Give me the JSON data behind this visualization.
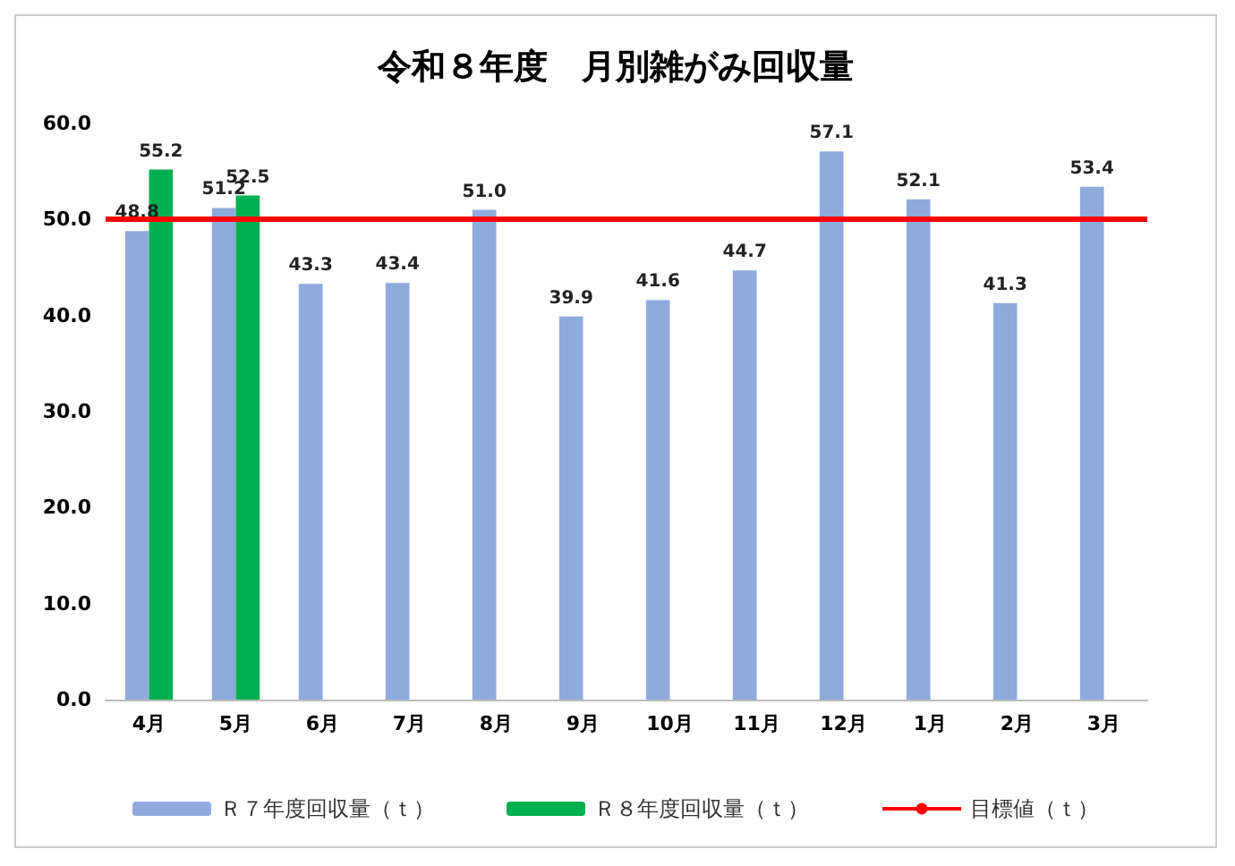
{
  "chart_data": {
    "type": "bar",
    "title": "令和８年度　月別雑がみ回収量",
    "categories": [
      "4月",
      "5月",
      "6月",
      "7月",
      "8月",
      "9月",
      "10月",
      "11月",
      "12月",
      "1月",
      "2月",
      "3月"
    ],
    "series": [
      {
        "name": "Ｒ７年度回収量（ｔ）",
        "color": "#8faadc",
        "values": [
          48.8,
          51.2,
          43.3,
          43.4,
          51.0,
          39.9,
          41.6,
          44.7,
          57.1,
          52.1,
          41.3,
          53.4
        ],
        "value_labels": [
          "48.8",
          "51.2",
          "43.3",
          "43.4",
          "51.0",
          "39.9",
          "41.6",
          "44.7",
          "57.1",
          "52.1",
          "41.3",
          "53.4"
        ]
      },
      {
        "name": "Ｒ８年度回収量（ｔ）",
        "color": "#00b050",
        "values": [
          55.2,
          52.5,
          null,
          null,
          null,
          null,
          null,
          null,
          null,
          null,
          null,
          null
        ],
        "value_labels": [
          "55.2",
          "52.5",
          null,
          null,
          null,
          null,
          null,
          null,
          null,
          null,
          null,
          null
        ]
      }
    ],
    "ref_lines": [
      {
        "axis": "y",
        "value": 50,
        "label": "目標値（ｔ）",
        "color": "#ff0000",
        "line_style": "solid"
      }
    ],
    "ylim": [
      0,
      60
    ],
    "yticks": [
      {
        "value": 0,
        "label": "0.0"
      },
      {
        "value": 10,
        "label": "10.0"
      },
      {
        "value": 20,
        "label": "20.0"
      },
      {
        "value": 30,
        "label": "30.0"
      },
      {
        "value": 40,
        "label": "40.0"
      },
      {
        "value": 50,
        "label": "50.0"
      },
      {
        "value": 60,
        "label": "60.0"
      }
    ],
    "grid": false,
    "legend": "bottom"
  }
}
